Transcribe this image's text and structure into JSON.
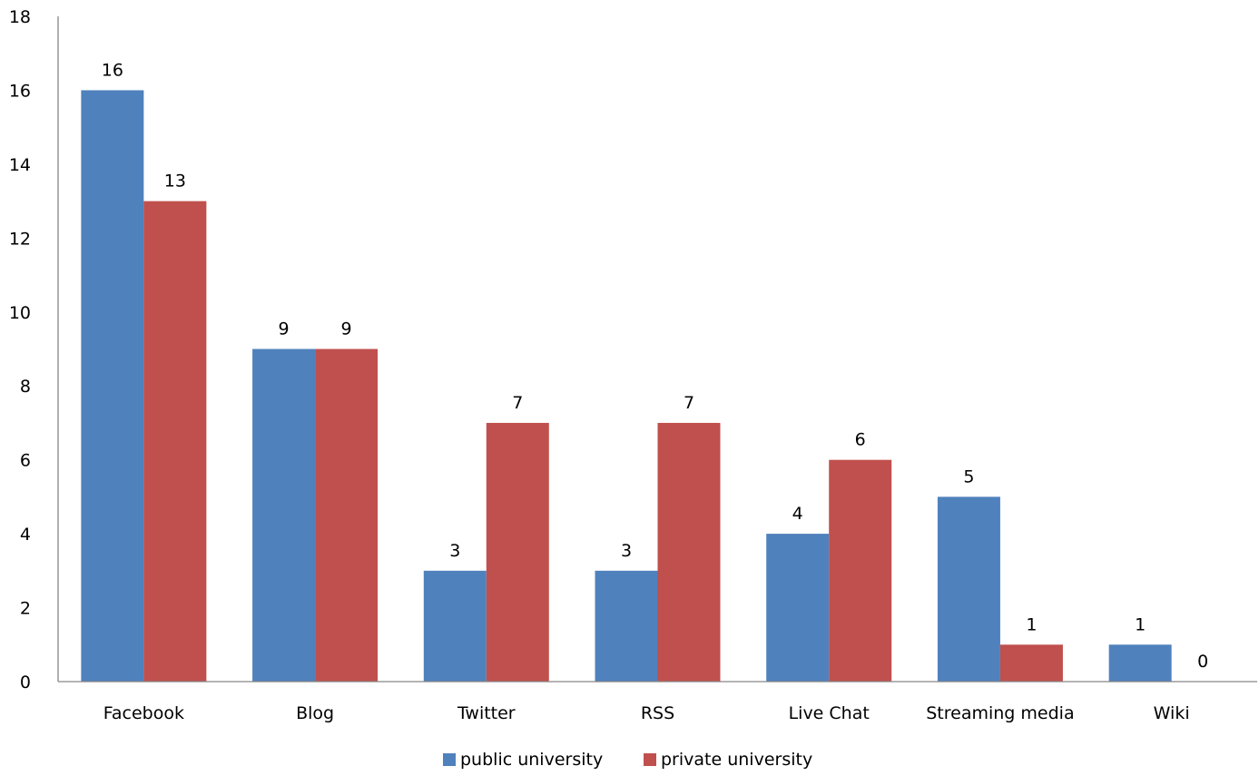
{
  "chart_data": {
    "type": "bar",
    "categories": [
      "Facebook",
      "Blog",
      "Twitter",
      "RSS",
      "Live Chat",
      "Streaming media",
      "Wiki"
    ],
    "series": [
      {
        "name": "public university",
        "values": [
          16,
          9,
          3,
          3,
          4,
          5,
          1
        ],
        "color": "#4f81bd"
      },
      {
        "name": "private university",
        "values": [
          13,
          9,
          7,
          7,
          6,
          1,
          0
        ],
        "color": "#c0504d"
      }
    ],
    "ylim": [
      0,
      18
    ],
    "yticks": [
      0,
      2,
      4,
      6,
      8,
      10,
      12,
      14,
      16,
      18
    ],
    "xlabel": "",
    "ylabel": "",
    "title": "",
    "grid": false,
    "legend_position": "bottom",
    "data_labels": true
  }
}
